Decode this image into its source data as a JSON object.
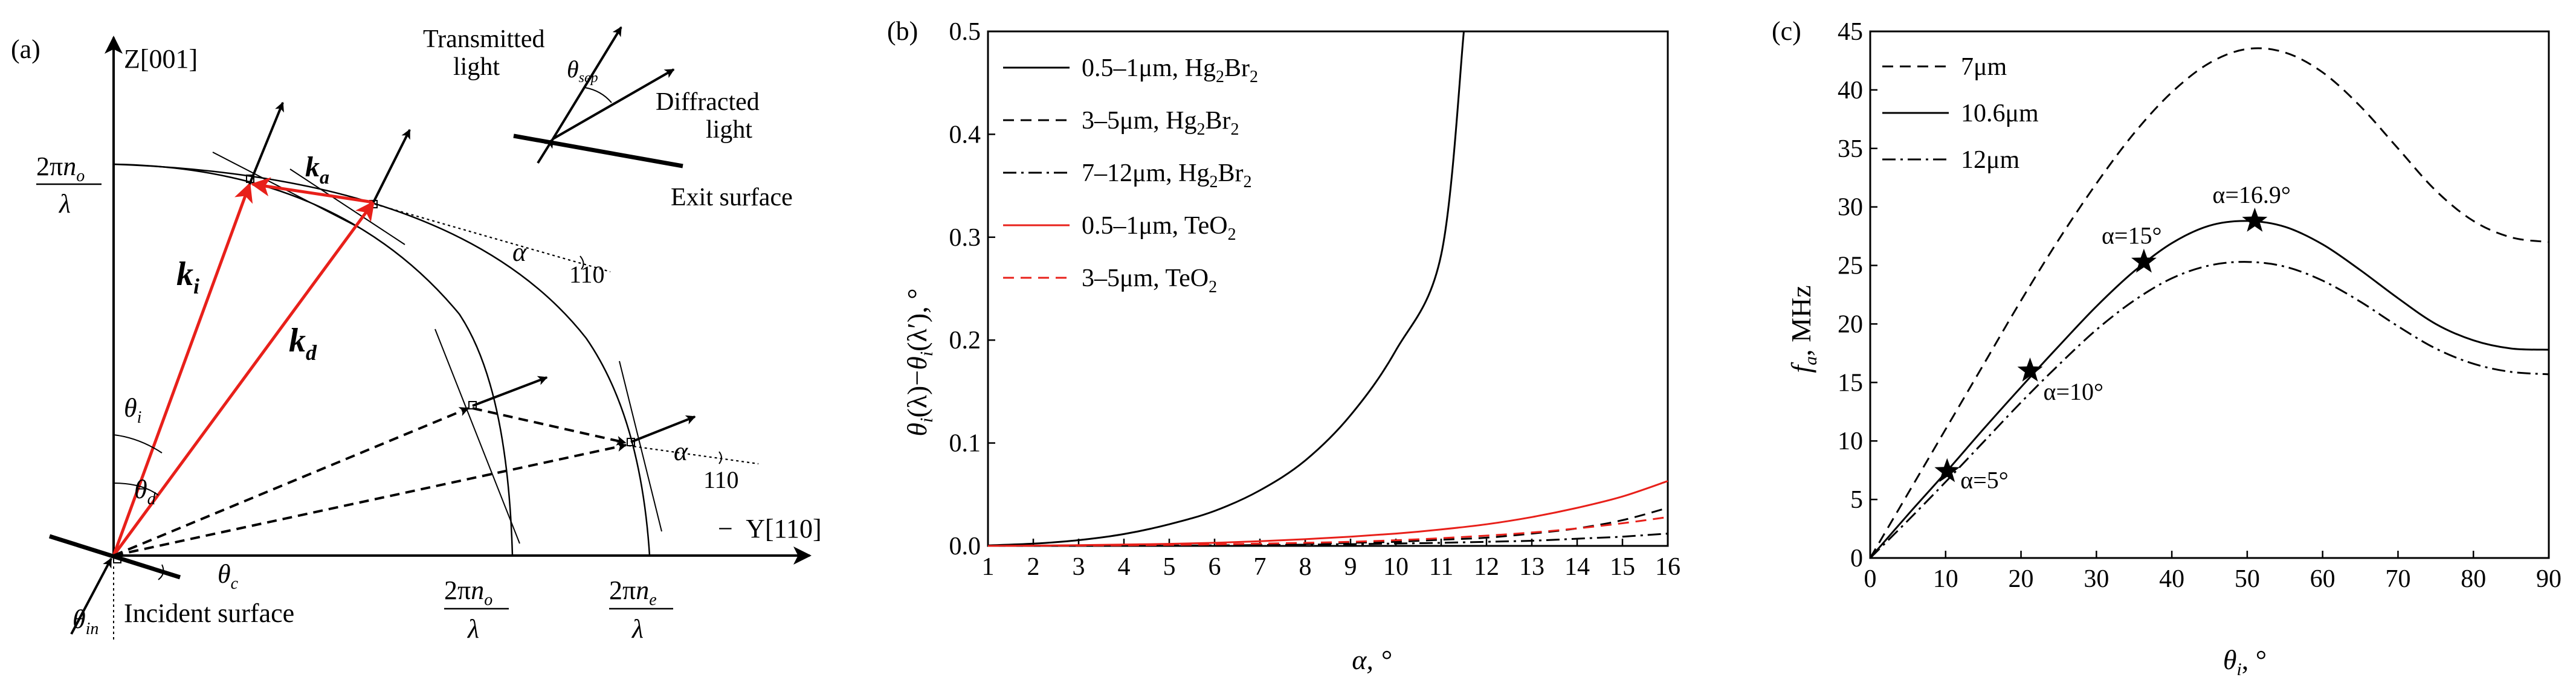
{
  "panel_a": {
    "label": "(a)",
    "z_axis_label": "Z[001]",
    "y_axis_label": "Y[110]",
    "y_axis_prefix": "−",
    "two_pi": "2π",
    "n": "n",
    "sub_o": "o",
    "sub_e": "e",
    "lambda": "λ",
    "k": "k",
    "sub_a": "a",
    "sub_i": "i",
    "sub_d": "d",
    "theta": "θ",
    "sub_in": "in",
    "sub_c": "c",
    "sub_sep": "sep",
    "alpha": "α",
    "dir_110": "110",
    "transmitted_1": "Transmitted",
    "transmitted_2": "light",
    "diffracted_1": "Diffracted",
    "diffracted_2": "light",
    "exit_surface": "Exit surface",
    "incident_surface": "Incident surface"
  },
  "chart_data": [
    {
      "type": "line",
      "panel": "(b)",
      "xlabel": "α, °",
      "ylabel": "θi(λ)−θi(λ′), °",
      "ylabel_parts": {
        "theta": "θ",
        "sub": "i",
        "left": "(λ)−",
        "right": "(λ′), °"
      },
      "xlim": [
        1,
        16
      ],
      "ylim": [
        0,
        0.5
      ],
      "xticks": [
        "1",
        "2",
        "3",
        "4",
        "5",
        "6",
        "7",
        "8",
        "9",
        "10",
        "11",
        "12",
        "13",
        "14",
        "15",
        "16"
      ],
      "yticks": [
        "0.0",
        "0.1",
        "0.2",
        "0.3",
        "0.4",
        "0.5"
      ],
      "legend_position": "top-left",
      "x": [
        1,
        2,
        3,
        4,
        5,
        6,
        7,
        8,
        9,
        10,
        11,
        12,
        13,
        14,
        15,
        16
      ],
      "series": [
        {
          "name": "0.5–1μm, Hg2Br2",
          "label_main": "0.5–1μm, Hg",
          "label_parts": [
            "Br"
          ],
          "style": "solid",
          "color": "#000000",
          "values": [
            0.0005,
            0.0022,
            0.0056,
            0.0115,
            0.021,
            0.034,
            0.054,
            0.083,
            0.127,
            0.19,
            0.283,
            null,
            null,
            null,
            null,
            null
          ],
          "end_point": [
            11.5,
            0.5
          ]
        },
        {
          "name": "3–5μm, Hg2Br2",
          "label_main": "3–5μm, Hg",
          "label_parts": [
            "Br"
          ],
          "style": "dashed",
          "color": "#000000",
          "values": [
            0,
            0,
            0,
            0.0002,
            0.0005,
            0.0009,
            0.0014,
            0.002,
            0.003,
            0.004,
            0.006,
            0.008,
            0.012,
            0.017,
            0.025,
            0.037
          ]
        },
        {
          "name": "7–12μm, Hg2Br2",
          "label_main": "7–12μm, Hg",
          "label_parts": [
            "Br"
          ],
          "style": "dashdot",
          "color": "#000000",
          "values": [
            0,
            0,
            0,
            0.0001,
            0.0003,
            0.0005,
            0.0008,
            0.0012,
            0.0017,
            0.0023,
            0.003,
            0.004,
            0.005,
            0.007,
            0.009,
            0.012
          ]
        },
        {
          "name": "0.5–1μm, TeO2",
          "label_main": "0.5–1μm, TeO",
          "label_parts": [],
          "style": "solid",
          "color": "#e8201a",
          "values": [
            0,
            0.0003,
            0.0007,
            0.0013,
            0.002,
            0.003,
            0.0045,
            0.0065,
            0.009,
            0.012,
            0.016,
            0.021,
            0.028,
            0.037,
            0.048,
            0.063
          ]
        },
        {
          "name": "3–5μm, TeO2",
          "label_main": "3–5μm, TeO",
          "label_parts": [],
          "style": "dashed",
          "color": "#e8201a",
          "values": [
            0,
            0.0001,
            0.0003,
            0.0006,
            0.001,
            0.0015,
            0.0022,
            0.003,
            0.004,
            0.0055,
            0.0075,
            0.01,
            0.013,
            0.017,
            0.022,
            0.028
          ]
        }
      ]
    },
    {
      "type": "line",
      "panel": "(c)",
      "xlabel": "θi, °",
      "xlabel_parts": {
        "theta": "θ",
        "sub": "i",
        "rest": ", °"
      },
      "ylabel": "fa, MHz",
      "ylabel_parts": {
        "f": "f",
        "sub": "a",
        "rest": ", MHz"
      },
      "xlim": [
        0,
        90
      ],
      "ylim": [
        0,
        45
      ],
      "xticks": [
        "0",
        "10",
        "20",
        "30",
        "40",
        "50",
        "60",
        "70",
        "80",
        "90"
      ],
      "yticks": [
        "0",
        "5",
        "10",
        "15",
        "20",
        "25",
        "30",
        "35",
        "40",
        "45"
      ],
      "legend_position": "top-left",
      "x": [
        0,
        5,
        10,
        15,
        20,
        25,
        30,
        35,
        40,
        45,
        50,
        55,
        60,
        65,
        70,
        75,
        80,
        85,
        90
      ],
      "series": [
        {
          "name": "7μm",
          "style": "dashed",
          "color": "#000000",
          "values": [
            0,
            5.5,
            11,
            16.5,
            22,
            27.2,
            32,
            36.3,
            39.8,
            42.3,
            43.5,
            43.2,
            41.5,
            38.6,
            35,
            31.4,
            28.8,
            27.4,
            27
          ]
        },
        {
          "name": "10.6μm",
          "style": "solid",
          "color": "#000000",
          "values": [
            0,
            3.7,
            7.3,
            11,
            14.6,
            18.1,
            21.5,
            24.5,
            26.9,
            28.4,
            28.8,
            28.3,
            26.8,
            24.6,
            22.2,
            20,
            18.6,
            17.9,
            17.8
          ]
        },
        {
          "name": "12μm",
          "style": "dashdot",
          "color": "#000000",
          "values": [
            0,
            3.2,
            6.5,
            9.9,
            13.3,
            16.5,
            19.5,
            22,
            23.9,
            25,
            25.3,
            24.9,
            23.7,
            21.9,
            19.8,
            17.9,
            16.6,
            15.9,
            15.7
          ]
        }
      ],
      "annotations": [
        {
          "text": "α=5°",
          "x": 10.2,
          "y": 7.4
        },
        {
          "text": "α=10°",
          "x": 21.2,
          "y": 16
        },
        {
          "text": "α=15°",
          "x": 36.3,
          "y": 25.3
        },
        {
          "text": "α=16.9°",
          "x": 51,
          "y": 28.8
        }
      ]
    }
  ]
}
